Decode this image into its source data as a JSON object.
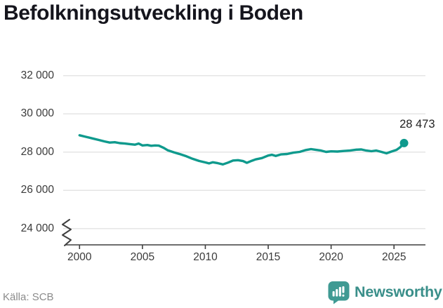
{
  "title": "Befolkningsutveckling i Boden",
  "annotation": "28 473",
  "footer": {
    "source": "Källa: SCB",
    "brand": "Newsworthy"
  },
  "colors": {
    "line": "#0f9a8d",
    "grid": "#e3e3e3",
    "axis": "#3f3f3f",
    "tick_text": "#3a3a3a",
    "title_text": "#15151d",
    "annotation_text": "#222222",
    "muted_text": "#8b8b8b",
    "brand": "#3a8f8a",
    "background": "#ffffff"
  },
  "chart_data": {
    "type": "line",
    "title": "Befolkningsutveckling i Boden",
    "xlabel": "",
    "ylabel": "",
    "grid": true,
    "legend": false,
    "x_axis": {
      "ticks": [
        2000,
        2005,
        2010,
        2015,
        2020,
        2025
      ],
      "tick_labels": [
        "2000",
        "2005",
        "2010",
        "2015",
        "2020",
        "2025"
      ],
      "lim": [
        1998.7,
        2027.5
      ]
    },
    "y_axis": {
      "ticks": [
        24000,
        26000,
        28000,
        30000,
        32000
      ],
      "tick_labels": [
        "24 000",
        "26 000",
        "28 000",
        "30 000",
        "32 000"
      ],
      "lim": [
        23150,
        32470
      ],
      "axis_break": true
    },
    "series": [
      {
        "name": "Folkmängd i Boden",
        "color": "#0f9a8d",
        "points": [
          [
            2000.0,
            28880
          ],
          [
            2000.5,
            28800
          ],
          [
            2001.0,
            28720
          ],
          [
            2001.5,
            28640
          ],
          [
            2002.0,
            28560
          ],
          [
            2002.4,
            28500
          ],
          [
            2002.8,
            28520
          ],
          [
            2003.2,
            28470
          ],
          [
            2003.6,
            28450
          ],
          [
            2004.0,
            28420
          ],
          [
            2004.4,
            28390
          ],
          [
            2004.7,
            28450
          ],
          [
            2005.0,
            28350
          ],
          [
            2005.4,
            28370
          ],
          [
            2005.7,
            28330
          ],
          [
            2006.0,
            28350
          ],
          [
            2006.3,
            28340
          ],
          [
            2006.7,
            28220
          ],
          [
            2007.0,
            28100
          ],
          [
            2007.5,
            27990
          ],
          [
            2008.0,
            27890
          ],
          [
            2008.5,
            27780
          ],
          [
            2009.0,
            27650
          ],
          [
            2009.5,
            27540
          ],
          [
            2010.0,
            27460
          ],
          [
            2010.3,
            27410
          ],
          [
            2010.6,
            27470
          ],
          [
            2011.0,
            27420
          ],
          [
            2011.4,
            27360
          ],
          [
            2011.8,
            27450
          ],
          [
            2012.2,
            27560
          ],
          [
            2012.6,
            27580
          ],
          [
            2013.0,
            27530
          ],
          [
            2013.3,
            27440
          ],
          [
            2013.7,
            27550
          ],
          [
            2014.0,
            27620
          ],
          [
            2014.5,
            27690
          ],
          [
            2015.0,
            27820
          ],
          [
            2015.3,
            27860
          ],
          [
            2015.6,
            27800
          ],
          [
            2016.0,
            27880
          ],
          [
            2016.5,
            27900
          ],
          [
            2017.0,
            27970
          ],
          [
            2017.5,
            28010
          ],
          [
            2018.0,
            28110
          ],
          [
            2018.4,
            28160
          ],
          [
            2018.8,
            28120
          ],
          [
            2019.2,
            28080
          ],
          [
            2019.6,
            28010
          ],
          [
            2020.0,
            28040
          ],
          [
            2020.5,
            28030
          ],
          [
            2021.0,
            28060
          ],
          [
            2021.5,
            28080
          ],
          [
            2022.0,
            28130
          ],
          [
            2022.4,
            28140
          ],
          [
            2022.8,
            28080
          ],
          [
            2023.2,
            28050
          ],
          [
            2023.6,
            28080
          ],
          [
            2024.0,
            28010
          ],
          [
            2024.4,
            27940
          ],
          [
            2024.8,
            28030
          ],
          [
            2025.2,
            28120
          ],
          [
            2025.5,
            28260
          ],
          [
            2025.8,
            28473
          ]
        ]
      }
    ],
    "last_point": {
      "x": 2025.8,
      "value": 28473,
      "label": "28 473"
    }
  }
}
